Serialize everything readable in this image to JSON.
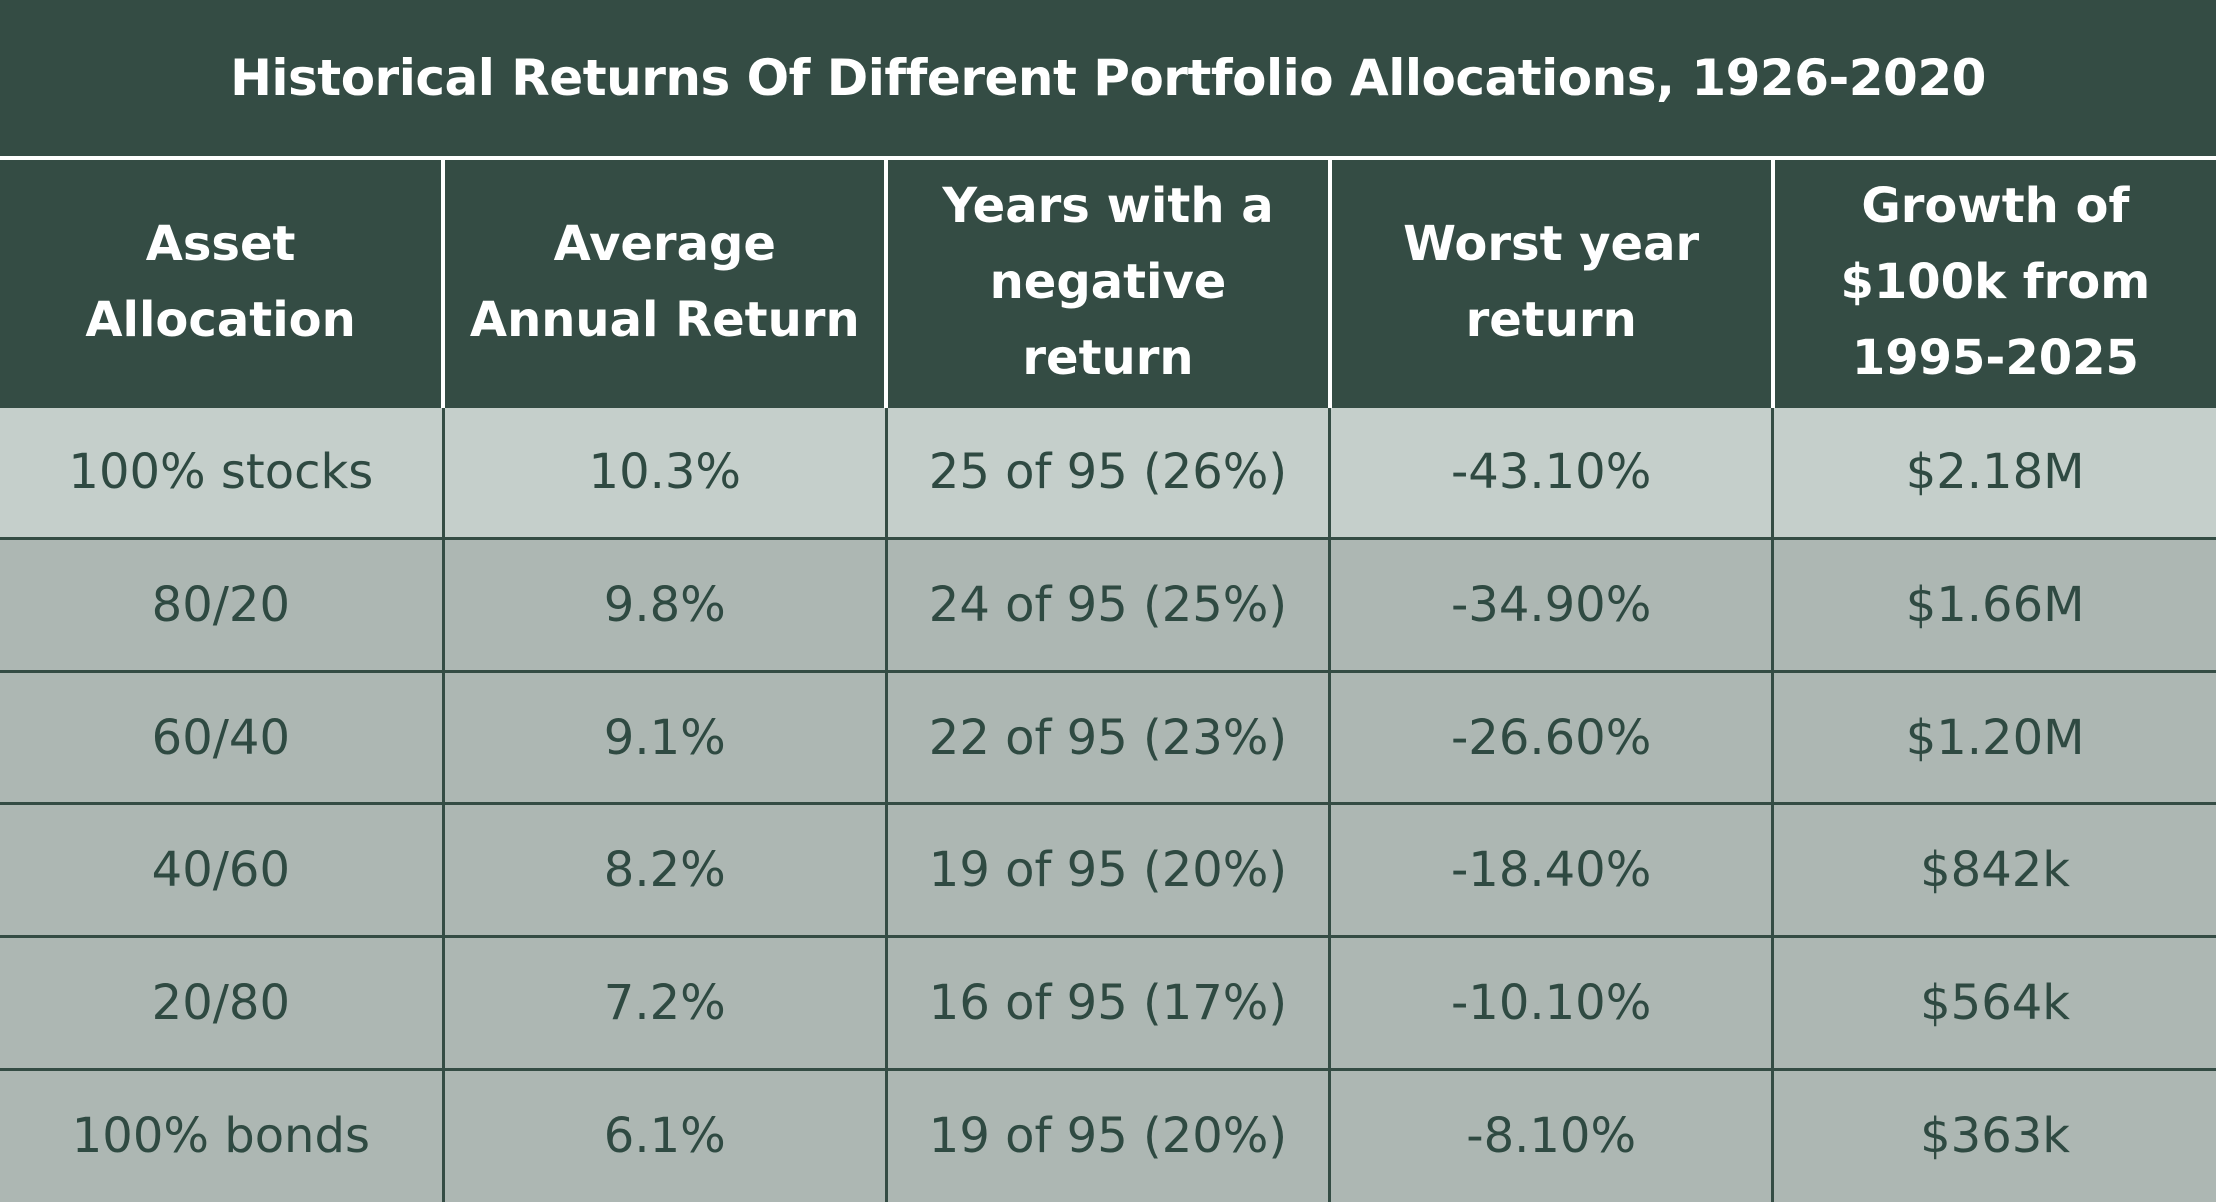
{
  "title": "Historical Returns Of Different Portfolio Allocations, 1926-2020",
  "colors": {
    "header_bg": "#344c44",
    "header_text": "#ffffff",
    "first_row_bg": "#c5cfcb",
    "row_bg": "#adb7b3",
    "cell_text": "#2f4a42"
  },
  "table": {
    "columns": [
      {
        "line1": "Asset",
        "line2": "Allocation",
        "line3": ""
      },
      {
        "line1": "Average",
        "line2": "Annual Return",
        "line3": ""
      },
      {
        "line1": "Years with a",
        "line2": "negative return",
        "line3": ""
      },
      {
        "line1": "Worst year",
        "line2": "return",
        "line3": ""
      },
      {
        "line1": "Growth of",
        "line2": "$100k from",
        "line3": "1995-2025"
      }
    ],
    "rows": [
      [
        "100% stocks",
        "10.3%",
        "25 of 95 (26%)",
        "-43.10%",
        "$2.18M"
      ],
      [
        "80/20",
        "9.8%",
        "24 of 95 (25%)",
        "-34.90%",
        "$1.66M"
      ],
      [
        "60/40",
        "9.1%",
        "22 of 95 (23%)",
        "-26.60%",
        "$1.20M"
      ],
      [
        "40/60",
        "8.2%",
        "19 of 95 (20%)",
        "-18.40%",
        "$842k"
      ],
      [
        "20/80",
        "7.2%",
        "16 of 95 (17%)",
        "-10.10%",
        "$564k"
      ],
      [
        "100% bonds",
        "6.1%",
        "19 of 95 (20%)",
        "-8.10%",
        "$363k"
      ]
    ]
  }
}
